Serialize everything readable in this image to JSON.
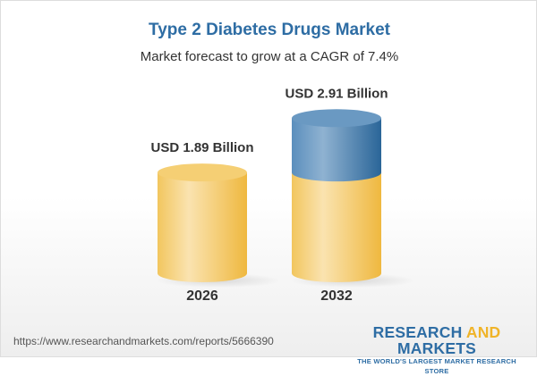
{
  "chart_data": {
    "type": "bar",
    "style": "3d-cylinder",
    "title": "Type 2 Diabetes Drugs Market",
    "subtitle": "Market forecast to grow at a CAGR of 7.4%",
    "categories": [
      "2026",
      "2032"
    ],
    "values": [
      1.89,
      2.91
    ],
    "data_labels": [
      "USD 1.89 Billion",
      "USD 2.91 Billion"
    ],
    "unit": "USD Billion",
    "grid": false,
    "colors": {
      "base": "#f3c55b",
      "growth": "#4f86b5"
    }
  },
  "footer": {
    "url": "https://www.researchandmarkets.com/reports/5666390",
    "logo_word1": "RESEARCH",
    "logo_word2": "AND",
    "logo_word3": "MARKETS",
    "logo_tagline": "THE WORLD'S LARGEST MARKET RESEARCH STORE"
  }
}
